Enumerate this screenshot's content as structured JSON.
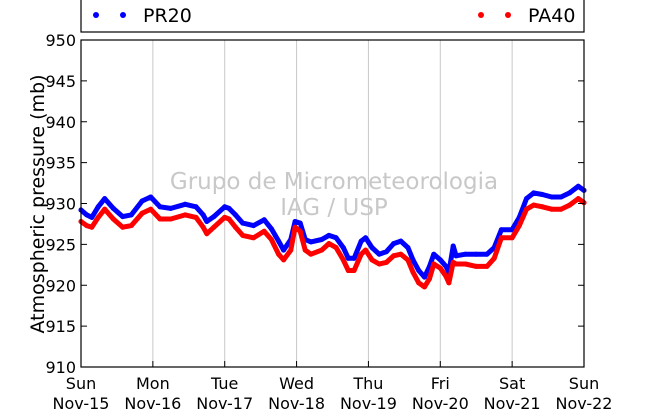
{
  "chart_data": {
    "type": "line",
    "watermark": [
      "Grupo de Micrometeorologia",
      "IAG / USP"
    ],
    "ylabel": "Atmospheric pressure (mb)",
    "ylim": [
      910,
      950
    ],
    "yticks": [
      910,
      915,
      920,
      925,
      930,
      935,
      940,
      945,
      950
    ],
    "xlim": [
      0,
      7
    ],
    "x_units": "days since Sun Nov-15 00:00",
    "xticks": [
      {
        "x": 0,
        "day": "Sun",
        "date": "Nov-15"
      },
      {
        "x": 1,
        "day": "Mon",
        "date": "Nov-16"
      },
      {
        "x": 2,
        "day": "Tue",
        "date": "Nov-17"
      },
      {
        "x": 3,
        "day": "Wed",
        "date": "Nov-18"
      },
      {
        "x": 4,
        "day": "Thu",
        "date": "Nov-19"
      },
      {
        "x": 5,
        "day": "Fri",
        "date": "Nov-20"
      },
      {
        "x": 6,
        "day": "Sat",
        "date": "Nov-21"
      },
      {
        "x": 7,
        "day": "Sun",
        "date": "Nov-22"
      }
    ],
    "grid": "vertical",
    "legend_placement": "top",
    "series": [
      {
        "name": "PR20",
        "color": "#0000ff",
        "points": [
          [
            0.0,
            929.2
          ],
          [
            0.08,
            928.6
          ],
          [
            0.15,
            928.3
          ],
          [
            0.24,
            929.6
          ],
          [
            0.33,
            930.6
          ],
          [
            0.45,
            929.4
          ],
          [
            0.58,
            928.4
          ],
          [
            0.7,
            928.6
          ],
          [
            0.85,
            930.3
          ],
          [
            0.97,
            930.8
          ],
          [
            1.1,
            929.6
          ],
          [
            1.25,
            929.4
          ],
          [
            1.45,
            929.9
          ],
          [
            1.6,
            929.6
          ],
          [
            1.7,
            928.6
          ],
          [
            1.75,
            927.8
          ],
          [
            1.85,
            928.4
          ],
          [
            2.0,
            929.6
          ],
          [
            2.06,
            929.4
          ],
          [
            2.15,
            928.6
          ],
          [
            2.25,
            927.6
          ],
          [
            2.4,
            927.3
          ],
          [
            2.55,
            928.0
          ],
          [
            2.65,
            926.9
          ],
          [
            2.75,
            925.4
          ],
          [
            2.82,
            924.3
          ],
          [
            2.92,
            925.6
          ],
          [
            2.98,
            927.8
          ],
          [
            3.05,
            927.6
          ],
          [
            3.12,
            925.6
          ],
          [
            3.2,
            925.3
          ],
          [
            3.35,
            925.6
          ],
          [
            3.45,
            926.1
          ],
          [
            3.55,
            925.8
          ],
          [
            3.65,
            924.6
          ],
          [
            3.72,
            923.3
          ],
          [
            3.8,
            923.3
          ],
          [
            3.9,
            925.4
          ],
          [
            3.96,
            925.8
          ],
          [
            4.05,
            924.6
          ],
          [
            4.15,
            923.8
          ],
          [
            4.25,
            924.1
          ],
          [
            4.35,
            925.1
          ],
          [
            4.45,
            925.4
          ],
          [
            4.55,
            924.6
          ],
          [
            4.62,
            923.1
          ],
          [
            4.7,
            921.8
          ],
          [
            4.78,
            921.0
          ],
          [
            4.85,
            922.3
          ],
          [
            4.91,
            923.8
          ],
          [
            5.0,
            923.1
          ],
          [
            5.08,
            922.3
          ],
          [
            5.12,
            921.6
          ],
          [
            5.18,
            924.8
          ],
          [
            5.22,
            923.6
          ],
          [
            5.35,
            923.8
          ],
          [
            5.5,
            923.8
          ],
          [
            5.65,
            923.8
          ],
          [
            5.75,
            924.6
          ],
          [
            5.85,
            926.8
          ],
          [
            6.0,
            926.8
          ],
          [
            6.1,
            928.3
          ],
          [
            6.2,
            930.6
          ],
          [
            6.3,
            931.3
          ],
          [
            6.42,
            931.1
          ],
          [
            6.55,
            930.8
          ],
          [
            6.68,
            930.8
          ],
          [
            6.8,
            931.3
          ],
          [
            6.92,
            932.1
          ],
          [
            7.0,
            931.6
          ]
        ]
      },
      {
        "name": "PA40",
        "color": "#ff0000",
        "points": [
          [
            0.0,
            927.8
          ],
          [
            0.08,
            927.3
          ],
          [
            0.15,
            927.1
          ],
          [
            0.24,
            928.3
          ],
          [
            0.33,
            929.3
          ],
          [
            0.45,
            928.1
          ],
          [
            0.58,
            927.1
          ],
          [
            0.7,
            927.3
          ],
          [
            0.85,
            928.8
          ],
          [
            0.97,
            929.3
          ],
          [
            1.1,
            928.1
          ],
          [
            1.25,
            928.1
          ],
          [
            1.45,
            928.6
          ],
          [
            1.6,
            928.3
          ],
          [
            1.7,
            927.1
          ],
          [
            1.75,
            926.3
          ],
          [
            1.85,
            927.1
          ],
          [
            2.0,
            928.3
          ],
          [
            2.06,
            928.1
          ],
          [
            2.15,
            927.1
          ],
          [
            2.25,
            926.1
          ],
          [
            2.4,
            925.8
          ],
          [
            2.55,
            926.6
          ],
          [
            2.65,
            925.6
          ],
          [
            2.75,
            923.8
          ],
          [
            2.82,
            923.1
          ],
          [
            2.92,
            924.3
          ],
          [
            2.98,
            927.1
          ],
          [
            3.05,
            926.6
          ],
          [
            3.12,
            924.3
          ],
          [
            3.2,
            923.8
          ],
          [
            3.35,
            924.3
          ],
          [
            3.45,
            925.1
          ],
          [
            3.55,
            924.6
          ],
          [
            3.65,
            923.1
          ],
          [
            3.72,
            921.8
          ],
          [
            3.8,
            921.8
          ],
          [
            3.9,
            923.8
          ],
          [
            3.96,
            924.3
          ],
          [
            4.05,
            923.1
          ],
          [
            4.15,
            922.6
          ],
          [
            4.25,
            922.8
          ],
          [
            4.35,
            923.6
          ],
          [
            4.45,
            923.8
          ],
          [
            4.55,
            923.1
          ],
          [
            4.62,
            921.6
          ],
          [
            4.7,
            920.3
          ],
          [
            4.78,
            919.8
          ],
          [
            4.85,
            920.8
          ],
          [
            4.91,
            922.6
          ],
          [
            5.0,
            922.1
          ],
          [
            5.08,
            921.1
          ],
          [
            5.12,
            920.3
          ],
          [
            5.18,
            922.8
          ],
          [
            5.22,
            922.6
          ],
          [
            5.35,
            922.6
          ],
          [
            5.5,
            922.3
          ],
          [
            5.65,
            922.3
          ],
          [
            5.75,
            923.3
          ],
          [
            5.85,
            925.8
          ],
          [
            6.0,
            925.8
          ],
          [
            6.1,
            927.3
          ],
          [
            6.2,
            929.3
          ],
          [
            6.3,
            929.8
          ],
          [
            6.42,
            929.6
          ],
          [
            6.55,
            929.3
          ],
          [
            6.68,
            929.3
          ],
          [
            6.8,
            929.8
          ],
          [
            6.92,
            930.6
          ],
          [
            7.0,
            930.1
          ]
        ]
      }
    ]
  }
}
